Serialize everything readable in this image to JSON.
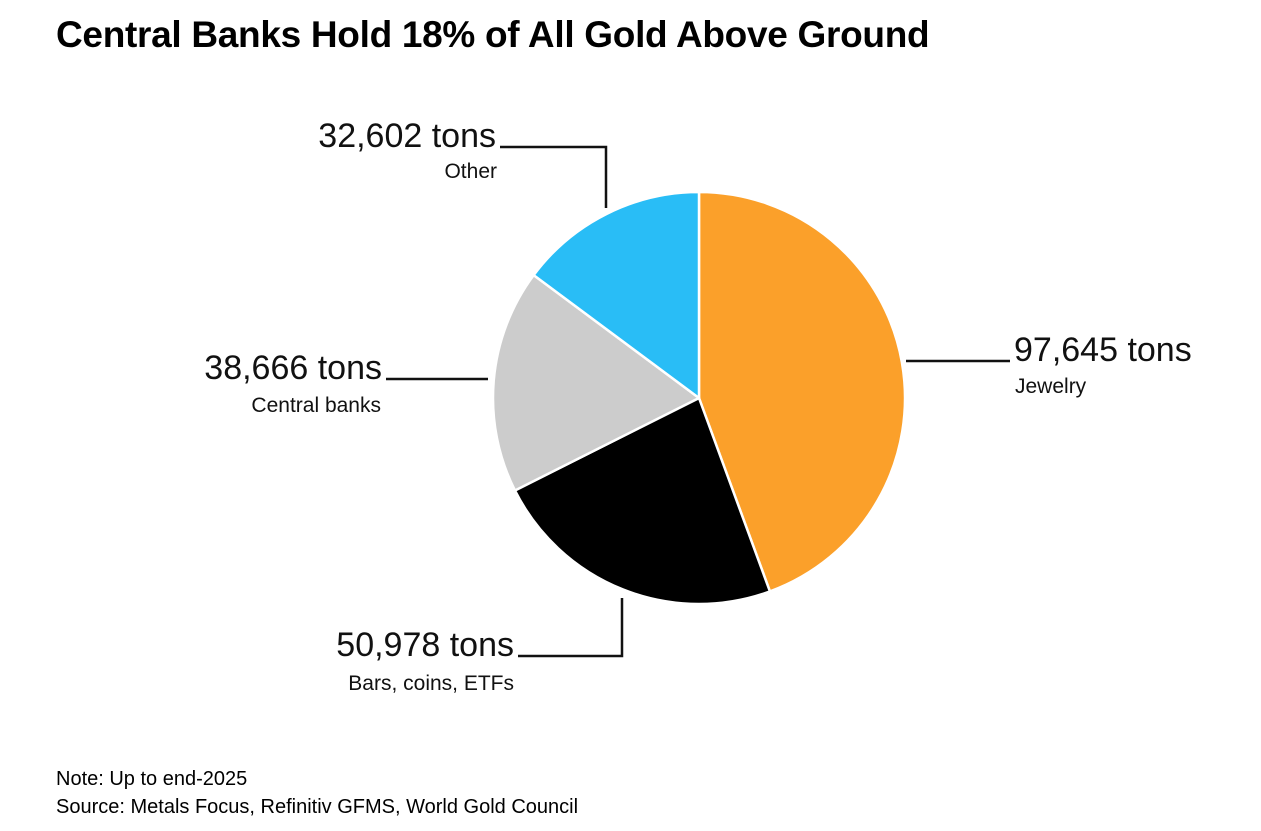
{
  "title": "Central Banks Hold 18% of All Gold Above Ground",
  "chart_data": {
    "type": "pie",
    "title": "Central Banks Hold 18% of All Gold Above Ground",
    "unit": "tons",
    "start_angle_deg": 0,
    "direction": "clockwise",
    "slices": [
      {
        "label": "Jewelry",
        "value": 97645,
        "value_text": "97,645 tons",
        "color": "#FBA02A"
      },
      {
        "label": "Bars, coins, ETFs",
        "value": 50978,
        "value_text": "50,978 tons",
        "color": "#000000"
      },
      {
        "label": "Central banks",
        "value": 38666,
        "value_text": "38,666 tons",
        "color": "#CCCCCC"
      },
      {
        "label": "Other",
        "value": 32602,
        "value_text": "32,602 tons",
        "color": "#29BDF6"
      }
    ]
  },
  "footnotes": {
    "note": "Note: Up to end-2025",
    "source": "Source: Metals Focus, Refinitiv GFMS, World Gold Council"
  }
}
